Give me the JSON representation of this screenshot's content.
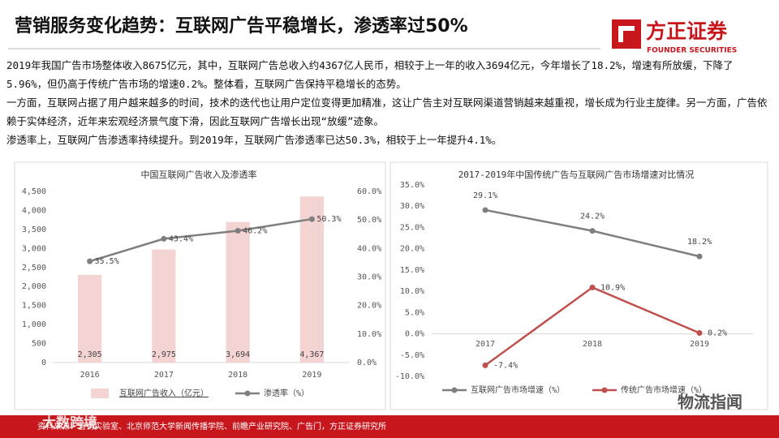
{
  "header": {
    "title": "营销服务变化趋势：互联网广告平稳增长，渗透率过50%",
    "logo": "方正证券",
    "logo_english": "FOUNDER SECURITIES"
  },
  "paragraphs": [
    "2019年我国广告市场整体收入8675亿元，其中，互联网广告总收入约4367亿人民币，相较于上一年的收入3694亿元，今年增长了18.2%，增速有所放缓，下降了5.96%，但仍高于传统广告市场的增速0.2%。整体看，互联网广告保持平稳增长的态势。",
    "一方面，互联网占据了用户越来越多的时间，技术的迭代也让用户定位变得更加精准，这让广告主对互联网渠道营销越来越重视，增长成为行业主旋律。另一方面，广告依赖于实体经济，近年来宏观经济景气度下滑，因此互联网广告增长出现“放缓”迹象。",
    "渗透率上，互联网广告渗透率持续提升。到2019年，互联网广告渗透率已达50.3%，相较于上一年提升4.1%。"
  ],
  "chart_data": [
    {
      "type": "combo",
      "title": "中国互联网广告收入及渗透率",
      "categories": [
        "2016",
        "2017",
        "2018",
        "2019"
      ],
      "series": [
        {
          "name": "互联网广告收入（亿元）",
          "type": "bar",
          "color": "#f4d3d3",
          "values": [
            2305,
            2975,
            3694,
            4367
          ],
          "value_labels": [
            "2,305",
            "2,975",
            "3,694",
            "4,367"
          ]
        },
        {
          "name": "渗透率（%）",
          "type": "line",
          "axis": "y2",
          "color": "#7f7f7f",
          "values": [
            35.5,
            43.4,
            46.2,
            50.3
          ],
          "value_labels": [
            "35.5%",
            "43.4%",
            "46.2%",
            "50.3%"
          ]
        }
      ],
      "ylim": [
        0,
        4500
      ],
      "yticks": [
        0,
        500,
        {
          "value": 1000,
          "label": "1,000"
        },
        {
          "value": 1500,
          "label": "1,500"
        },
        {
          "value": 2000,
          "label": "2,000"
        },
        {
          "value": 2500,
          "label": "2,500"
        },
        {
          "value": 3000,
          "label": "3,000"
        },
        {
          "value": 3500,
          "label": "3,500"
        },
        {
          "value": 4000,
          "label": "4,000"
        },
        {
          "value": 4500,
          "label": "4,500"
        }
      ],
      "y2lim": [
        0,
        60
      ],
      "y2ticks": [
        {
          "value": 0,
          "label": "0.0%"
        },
        {
          "value": 10,
          "label": "10.0%"
        },
        {
          "value": 20,
          "label": "20.0%"
        },
        {
          "value": 30,
          "label": "30.0%"
        },
        {
          "value": 40,
          "label": "40.0%"
        },
        {
          "value": 50,
          "label": "50.0%"
        },
        {
          "value": 60,
          "label": "60.0%"
        }
      ],
      "grid": false
    },
    {
      "type": "line",
      "title": "2017-2019年中国传统广告与互联网广告市场增速对比情况",
      "categories": [
        "2017",
        "2018",
        "2019"
      ],
      "series": [
        {
          "name": "互联网广告市场增速（%）",
          "color": "#7f7f7f",
          "values": [
            29.1,
            24.2,
            18.2
          ],
          "value_labels": [
            "29.1%",
            "24.2%",
            "18.2%"
          ]
        },
        {
          "name": "传统广告市场增速（%）",
          "color": "#c0504d",
          "values": [
            -7.4,
            10.9,
            0.2
          ],
          "value_labels": [
            "-7.4%",
            "10.9%",
            "0.2%"
          ]
        }
      ],
      "ylim": [
        -10,
        35
      ],
      "yticks": [
        {
          "value": -10,
          "label": "-10.0%"
        },
        {
          "value": -5,
          "label": "-5.0%"
        },
        {
          "value": 0,
          "label": "0.0%"
        },
        {
          "value": 5,
          "label": "5.0%"
        },
        {
          "value": 10,
          "label": "10.0%"
        },
        {
          "value": 15,
          "label": "15.0%"
        },
        {
          "value": 20,
          "label": "20.0%"
        },
        {
          "value": 25,
          "label": "25.0%"
        },
        {
          "value": 30,
          "label": "30.0%"
        },
        {
          "value": 35,
          "label": "35.0%"
        }
      ],
      "grid": false
    }
  ],
  "footer": {
    "source": "资料来源：营销实验室、北京师范大学新闻传播学院、前瞻产业研究院、广告门，方正证券研究所"
  },
  "watermarks": [
    "大数跨境",
    "物流指闻"
  ]
}
